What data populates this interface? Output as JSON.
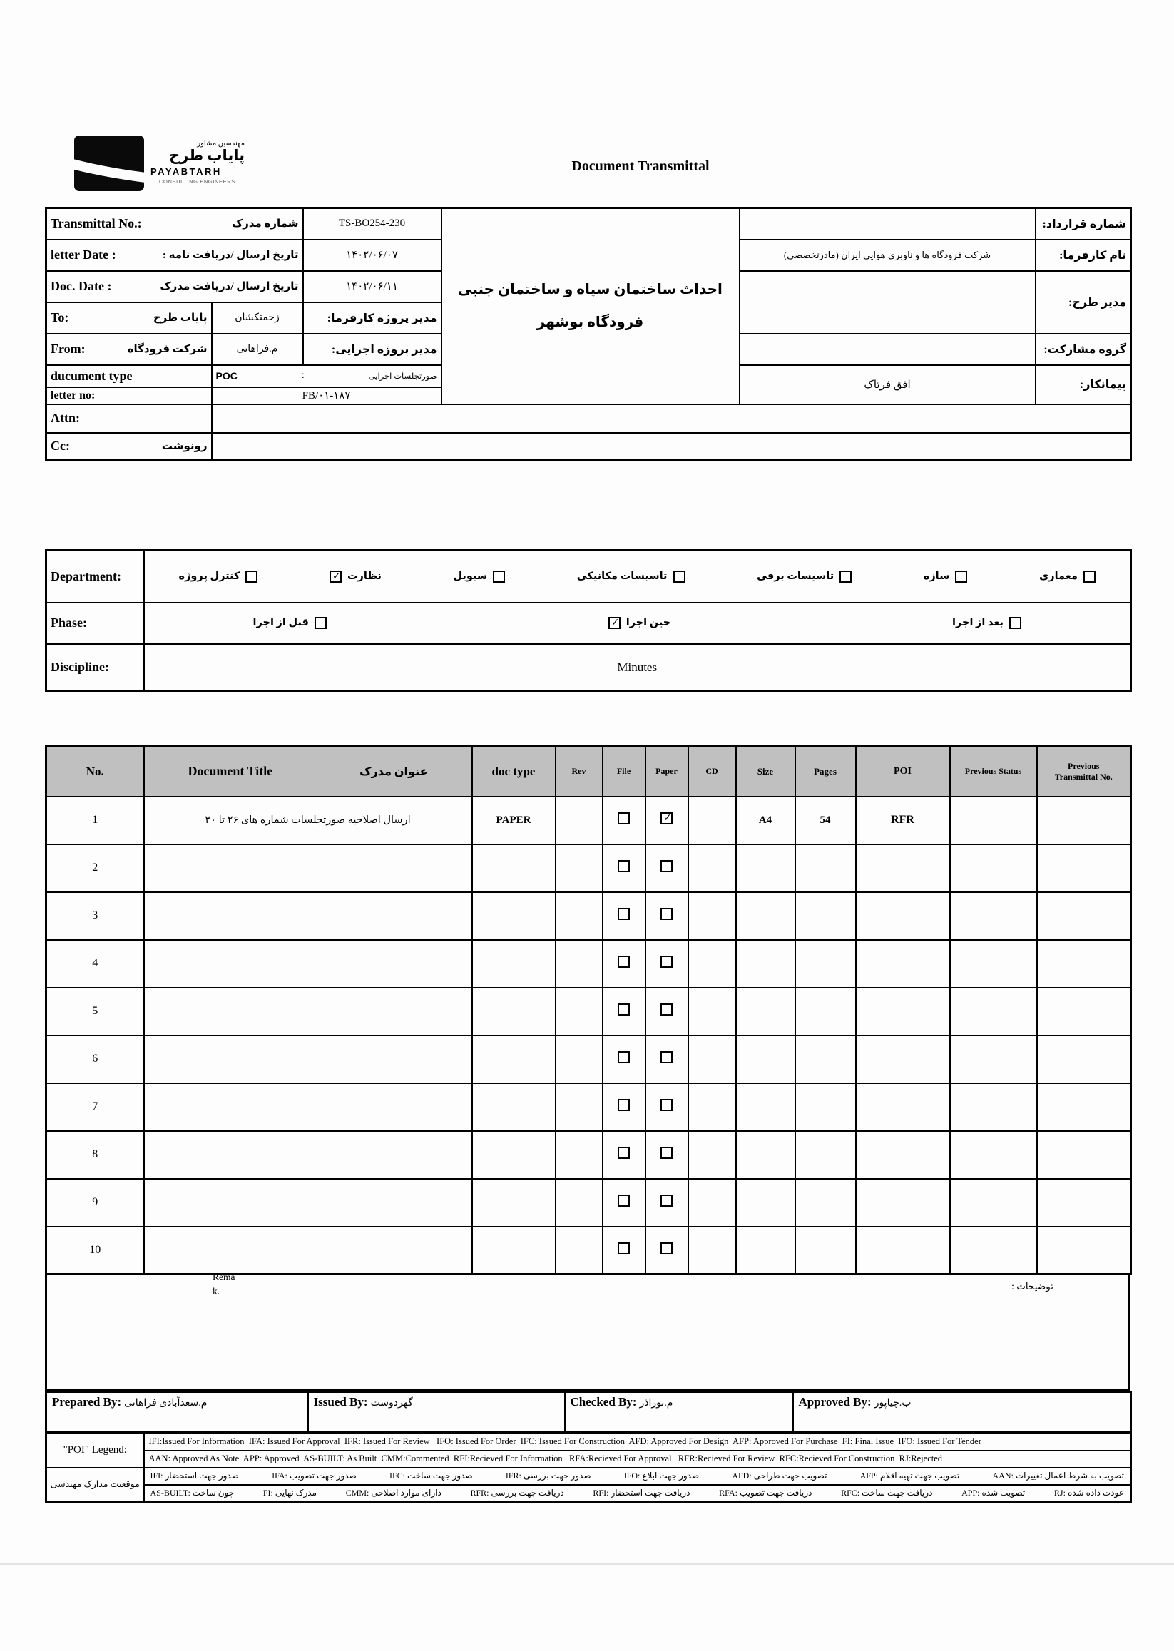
{
  "logo": {
    "persian_small": "مهندسین مشاور",
    "persian_large": "پایاب طرح",
    "name_en": "PAYABTARH",
    "subtitle_en": "CONSULTING ENGINEERS"
  },
  "title": "Document Transmittal",
  "header": {
    "transmittal_no": {
      "label_en": "Transmittal No.:",
      "label_fa": "شماره مدرک",
      "value": "TS-BO254-230"
    },
    "letter_date": {
      "label_en": "letter Date  :",
      "label_fa": "تاریخ ارسال /دریافت نامه :",
      "value": "۱۴۰۲/۰۶/۰۷"
    },
    "doc_date": {
      "label_en": "Doc. Date :",
      "label_fa": "تاریخ ارسال /دریافت مدرک",
      "value": "۱۴۰۲/۰۶/۱۱"
    },
    "to": {
      "label_en": "To:",
      "value_fa": "پایاب طرح",
      "manager_name": "زحمتکشان",
      "manager_label": "مدیر پروژه کارفرما:"
    },
    "from": {
      "label_en": "From:",
      "value_fa": "شرکت فرودگاه",
      "manager_name": "م.فراهانی",
      "manager_label": "مدیر پروژه اجرایی:"
    },
    "document_type": {
      "label_en": "ducument type",
      "value": "POC",
      "colon": ":",
      "value_fa": "صورتجلسات اجرایی"
    },
    "letter_no": {
      "label_en": "letter no:",
      "value": "FB/۰۱-۱۸۷"
    },
    "attn": {
      "label_en": "Attn:",
      "value": ""
    },
    "cc": {
      "label_en": "Cc:",
      "label_fa": "رونوشت",
      "value": ""
    },
    "project_title_line1": "احداث ساختمان سپاه و ساختمان جنبی",
    "project_title_line2": "فرودگاه بوشهر",
    "right": {
      "contract_no": {
        "label": "شماره قرارداد:",
        "value": ""
      },
      "client_name": {
        "label": "نام کارفرما:",
        "value": "شرکت فرودگاه ها و ناوبری هوایی ایران (مادرتخصصی)"
      },
      "design_manager": {
        "label": "مدیر طرح:",
        "value": ""
      },
      "jv_group": {
        "label": "گروه مشارکت:",
        "value": ""
      },
      "contractor": {
        "label": "پیمانکار:",
        "value": "افق فرتاک"
      }
    }
  },
  "department": {
    "label": "Department:",
    "options": [
      {
        "label": "معماری",
        "checked": false
      },
      {
        "label": "سازه",
        "checked": false
      },
      {
        "label": "تاسیسات برقی",
        "checked": false
      },
      {
        "label": "تاسیسات مکانیکی",
        "checked": false
      },
      {
        "label": "سیویل",
        "checked": false
      },
      {
        "label": "نظارت",
        "checked": true
      },
      {
        "label": "کنترل پروژه",
        "checked": false
      }
    ]
  },
  "phase": {
    "label": "Phase:",
    "options": [
      {
        "label": "بعد از اجرا",
        "checked": false
      },
      {
        "label": "حین اجرا",
        "checked": true
      },
      {
        "label": "قبل از اجرا",
        "checked": false
      }
    ]
  },
  "discipline": {
    "label": "Discipline:",
    "value": "Minutes"
  },
  "doc_table": {
    "headers": {
      "no": "No.",
      "title_en": "Document Title",
      "title_fa": "عنوان مدرک",
      "doc_type": "doc type",
      "rev": "Rev",
      "file": "File",
      "paper": "Paper",
      "cd": "CD",
      "size": "Size",
      "pages": "Pages",
      "poi": "POI",
      "previous_status": "Previous Status",
      "previous_transmittal": "Previous Transmittal No."
    },
    "rows": [
      {
        "no": "1",
        "title": "ارسال اصلاحیه صورتجلسات شماره های ۲۶ تا ۳۰",
        "doc_type": "PAPER",
        "rev": "",
        "file": false,
        "paper": true,
        "cd": "",
        "size": "A4",
        "pages": "54",
        "poi": "RFR",
        "previous_status": "",
        "previous_transmittal": ""
      },
      {
        "no": "2",
        "title": "",
        "doc_type": "",
        "rev": "",
        "file": false,
        "paper": false,
        "cd": "",
        "size": "",
        "pages": "",
        "poi": "",
        "previous_status": "",
        "previous_transmittal": ""
      },
      {
        "no": "3",
        "title": "",
        "doc_type": "",
        "rev": "",
        "file": false,
        "paper": false,
        "cd": "",
        "size": "",
        "pages": "",
        "poi": "",
        "previous_status": "",
        "previous_transmittal": ""
      },
      {
        "no": "4",
        "title": "",
        "doc_type": "",
        "rev": "",
        "file": false,
        "paper": false,
        "cd": "",
        "size": "",
        "pages": "",
        "poi": "",
        "previous_status": "",
        "previous_transmittal": ""
      },
      {
        "no": "5",
        "title": "",
        "doc_type": "",
        "rev": "",
        "file": false,
        "paper": false,
        "cd": "",
        "size": "",
        "pages": "",
        "poi": "",
        "previous_status": "",
        "previous_transmittal": ""
      },
      {
        "no": "6",
        "title": "",
        "doc_type": "",
        "rev": "",
        "file": false,
        "paper": false,
        "cd": "",
        "size": "",
        "pages": "",
        "poi": "",
        "previous_status": "",
        "previous_transmittal": ""
      },
      {
        "no": "7",
        "title": "",
        "doc_type": "",
        "rev": "",
        "file": false,
        "paper": false,
        "cd": "",
        "size": "",
        "pages": "",
        "poi": "",
        "previous_status": "",
        "previous_transmittal": ""
      },
      {
        "no": "8",
        "title": "",
        "doc_type": "",
        "rev": "",
        "file": false,
        "paper": false,
        "cd": "",
        "size": "",
        "pages": "",
        "poi": "",
        "previous_status": "",
        "previous_transmittal": ""
      },
      {
        "no": "9",
        "title": "",
        "doc_type": "",
        "rev": "",
        "file": false,
        "paper": false,
        "cd": "",
        "size": "",
        "pages": "",
        "poi": "",
        "previous_status": "",
        "previous_transmittal": ""
      },
      {
        "no": "10",
        "title": "",
        "doc_type": "",
        "rev": "",
        "file": false,
        "paper": false,
        "cd": "",
        "size": "",
        "pages": "",
        "poi": "",
        "previous_status": "",
        "previous_transmittal": ""
      }
    ]
  },
  "remark": {
    "line1": "Rema",
    "line2": "k.",
    "notes_fa": "توضیحات :"
  },
  "signatures": [
    {
      "label": "Prepared By:",
      "name": "م.سعدآبادی فراهانی"
    },
    {
      "label": "Issued By:",
      "name": "گهردوست"
    },
    {
      "label": "Checked By:",
      "name": "م.نوراذر"
    },
    {
      "label": "Approved By:",
      "name": "ب.چیاپور"
    }
  ],
  "legend": {
    "poi_label": "\"POI\" Legend:",
    "status_label": "موقعیت مدارک مهندسی",
    "en_row1": "IFI:Issued For Information  IFA: Issued For Approval  IFR: Issued For Review   IFO: Issued For Order  IFC: Issued For Construction  AFD: Approved For Design  AFP: Approved For Purchase  FI: Final Issue  IFO: Issued For Tender",
    "en_row2": "AAN: Approved As Note  APP: Approved  AS-BUILT: As Built  CMM:Commented  RFI:Recieved For Information   RFA:Recieved For Approval   RFR:Recieved For Review  RFC:Recieved For Construction  RJ:Rejected",
    "fa_row1": [
      "IFI: صدور جهت استحضار",
      "IFA: صدور جهت تصویب",
      "IFC: صدور جهت ساخت",
      "IFR: صدور جهت بررسی",
      "IFO: صدور جهت ابلاغ",
      "AFD: تصویب جهت طراحی",
      "AFP: تصویب جهت تهیه اقلام",
      "AAN: تصویب به شرط اعمال تغییرات"
    ],
    "fa_row2": [
      "AS-BUILT: چون ساخت",
      "FI: مدرک نهایی",
      "CMM: دارای موارد اصلاحی",
      "RFR: دریافت جهت بررسی",
      "RFI: دریافت جهت استحضار",
      "RFA: دریافت جهت تصویب",
      "RFC: دریافت جهت ساخت",
      "APP: تصویب شده",
      "RJ: عودت داده شده"
    ]
  }
}
